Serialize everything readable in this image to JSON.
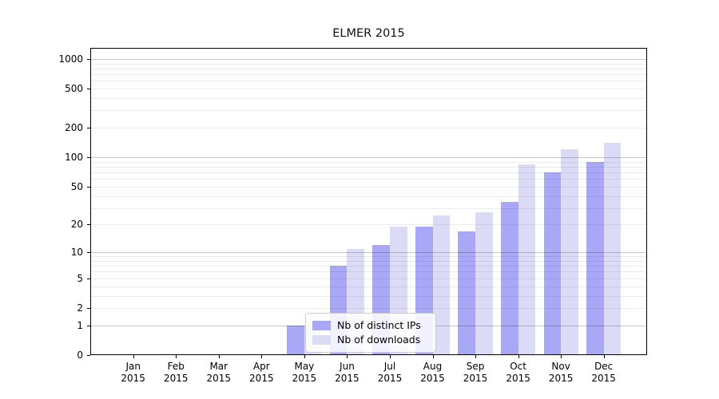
{
  "chart_data": {
    "type": "bar",
    "title": "ELMER 2015",
    "y_scale": "log10(1+x)",
    "categories": [
      "Jan 2015",
      "Feb 2015",
      "Mar 2015",
      "Apr 2015",
      "May 2015",
      "Jun 2015",
      "Jul 2015",
      "Aug 2015",
      "Sep 2015",
      "Oct 2015",
      "Nov 2015",
      "Dec 2015"
    ],
    "series": [
      {
        "name": "Nb of distinct IPs",
        "color": "#a8a8f6",
        "values": [
          0,
          0,
          0,
          0,
          1,
          7,
          12,
          19,
          17,
          35,
          70,
          90
        ]
      },
      {
        "name": "Nb of downloads",
        "color": "#dbdbf8",
        "values": [
          0,
          0,
          0,
          0,
          1,
          11,
          19,
          25,
          27,
          85,
          122,
          140
        ]
      }
    ],
    "y_ticks": [
      0,
      1,
      2,
      5,
      10,
      20,
      50,
      100,
      200,
      500,
      1000
    ],
    "ylim": [
      0,
      1300
    ],
    "xlabel": "",
    "ylabel": "",
    "grid": "horizontal major+minor",
    "legend_position": "lower center"
  },
  "colors": {
    "background": "#ffffff",
    "axis": "#000000",
    "grid_major": "#c8c8c8",
    "grid_minor": "#ececec",
    "legend_border": "#cccccc"
  }
}
